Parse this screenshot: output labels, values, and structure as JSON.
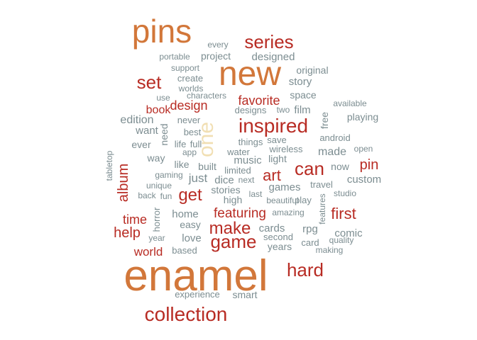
{
  "colors": {
    "orange": "#d2773a",
    "red": "#b82c24",
    "gray": "#7c8d91",
    "pale": "#f1dfb3"
  },
  "words": [
    {
      "text": "enamel",
      "color": "orange"
    },
    {
      "text": "new",
      "color": "orange"
    },
    {
      "text": "pins",
      "color": "orange"
    },
    {
      "text": "collection",
      "color": "red"
    },
    {
      "text": "series",
      "color": "red"
    },
    {
      "text": "inspired",
      "color": "red"
    },
    {
      "text": "hard",
      "color": "red"
    },
    {
      "text": "one",
      "color": "pale"
    },
    {
      "text": "game",
      "color": "red"
    },
    {
      "text": "make",
      "color": "red"
    },
    {
      "text": "can",
      "color": "red"
    },
    {
      "text": "set",
      "color": "red"
    },
    {
      "text": "get",
      "color": "red"
    },
    {
      "text": "art",
      "color": "red"
    },
    {
      "text": "first",
      "color": "red"
    },
    {
      "text": "featuring",
      "color": "red"
    },
    {
      "text": "help",
      "color": "red"
    },
    {
      "text": "pin",
      "color": "red"
    },
    {
      "text": "album",
      "color": "red"
    },
    {
      "text": "favorite",
      "color": "red"
    },
    {
      "text": "design",
      "color": "red"
    },
    {
      "text": "time",
      "color": "red"
    },
    {
      "text": "world",
      "color": "red"
    },
    {
      "text": "book",
      "color": "red"
    },
    {
      "text": "comic",
      "color": "gray"
    },
    {
      "text": "custom",
      "color": "gray"
    },
    {
      "text": "made",
      "color": "gray"
    },
    {
      "text": "story",
      "color": "gray"
    },
    {
      "text": "original",
      "color": "gray"
    },
    {
      "text": "designed",
      "color": "gray"
    },
    {
      "text": "project",
      "color": "gray"
    },
    {
      "text": "every",
      "color": "gray"
    },
    {
      "text": "portable",
      "color": "gray"
    },
    {
      "text": "support",
      "color": "gray"
    },
    {
      "text": "create",
      "color": "gray"
    },
    {
      "text": "worlds",
      "color": "gray"
    },
    {
      "text": "use",
      "color": "gray"
    },
    {
      "text": "characters",
      "color": "gray"
    },
    {
      "text": "space",
      "color": "gray"
    },
    {
      "text": "available",
      "color": "gray"
    },
    {
      "text": "designs",
      "color": "gray"
    },
    {
      "text": "two",
      "color": "gray"
    },
    {
      "text": "film",
      "color": "gray"
    },
    {
      "text": "free",
      "color": "gray"
    },
    {
      "text": "playing",
      "color": "gray"
    },
    {
      "text": "edition",
      "color": "gray"
    },
    {
      "text": "never",
      "color": "gray"
    },
    {
      "text": "want",
      "color": "gray"
    },
    {
      "text": "need",
      "color": "gray"
    },
    {
      "text": "best",
      "color": "gray"
    },
    {
      "text": "android",
      "color": "gray"
    },
    {
      "text": "open",
      "color": "gray"
    },
    {
      "text": "ever",
      "color": "gray"
    },
    {
      "text": "life",
      "color": "gray"
    },
    {
      "text": "full",
      "color": "gray"
    },
    {
      "text": "things",
      "color": "gray"
    },
    {
      "text": "save",
      "color": "gray"
    },
    {
      "text": "app",
      "color": "gray"
    },
    {
      "text": "water",
      "color": "gray"
    },
    {
      "text": "wireless",
      "color": "gray"
    },
    {
      "text": "way",
      "color": "gray"
    },
    {
      "text": "music",
      "color": "gray"
    },
    {
      "text": "light",
      "color": "gray"
    },
    {
      "text": "now",
      "color": "gray"
    },
    {
      "text": "tabletop",
      "color": "gray"
    },
    {
      "text": "like",
      "color": "gray"
    },
    {
      "text": "built",
      "color": "gray"
    },
    {
      "text": "limited",
      "color": "gray"
    },
    {
      "text": "gaming",
      "color": "gray"
    },
    {
      "text": "just",
      "color": "gray"
    },
    {
      "text": "dice",
      "color": "gray"
    },
    {
      "text": "next",
      "color": "gray"
    },
    {
      "text": "unique",
      "color": "gray"
    },
    {
      "text": "games",
      "color": "gray"
    },
    {
      "text": "travel",
      "color": "gray"
    },
    {
      "text": "back",
      "color": "gray"
    },
    {
      "text": "fun",
      "color": "gray"
    },
    {
      "text": "stories",
      "color": "gray"
    },
    {
      "text": "last",
      "color": "gray"
    },
    {
      "text": "studio",
      "color": "gray"
    },
    {
      "text": "high",
      "color": "gray"
    },
    {
      "text": "beautiful",
      "color": "gray"
    },
    {
      "text": "play",
      "color": "gray"
    },
    {
      "text": "horror",
      "color": "gray"
    },
    {
      "text": "home",
      "color": "gray"
    },
    {
      "text": "amazing",
      "color": "gray"
    },
    {
      "text": "features",
      "color": "gray"
    },
    {
      "text": "easy",
      "color": "gray"
    },
    {
      "text": "cards",
      "color": "gray"
    },
    {
      "text": "rpg",
      "color": "gray"
    },
    {
      "text": "year",
      "color": "gray"
    },
    {
      "text": "love",
      "color": "gray"
    },
    {
      "text": "second",
      "color": "gray"
    },
    {
      "text": "quality",
      "color": "gray"
    },
    {
      "text": "card",
      "color": "gray"
    },
    {
      "text": "years",
      "color": "gray"
    },
    {
      "text": "making",
      "color": "gray"
    },
    {
      "text": "based",
      "color": "gray"
    },
    {
      "text": "experience",
      "color": "gray"
    },
    {
      "text": "smart",
      "color": "gray"
    }
  ]
}
